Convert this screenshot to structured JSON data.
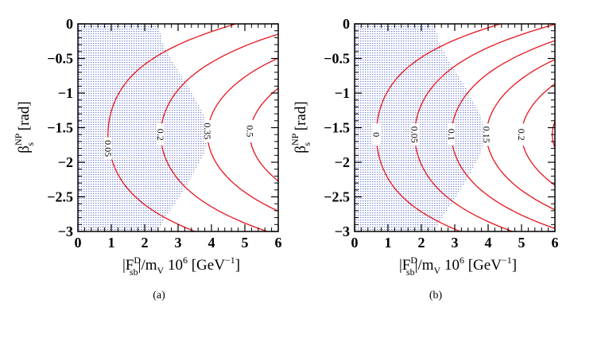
{
  "chart_data": [
    {
      "type": "contour",
      "panel": "(a)",
      "xlim": [
        0,
        6
      ],
      "ylim": [
        -3,
        0
      ],
      "xticks": [
        "0",
        "1",
        "2",
        "3",
        "4",
        "5",
        "6"
      ],
      "yticks": [
        "0",
        "−0.5",
        "−1",
        "−1.5",
        "−2",
        "−2.5",
        "−3"
      ],
      "xlabel": {
        "main": "|F",
        "sup": "D",
        "sub": "sb",
        "rest": "|/m",
        "sub2": "V",
        "after": " 10",
        "sup2": "6",
        "unit": " [GeV",
        "unitsup": "−1",
        "close": "]"
      },
      "ylabel": {
        "main": "β",
        "sup": "NP",
        "sub": "s",
        "unit": " [rad]"
      },
      "shaded_region": {
        "color": "#6f7fcf",
        "description": "allowed region",
        "boundary_x": [
          2.4,
          2.55,
          2.9,
          3.3,
          3.75,
          3.95,
          3.75,
          3.3,
          2.9,
          2.55,
          2.4
        ],
        "boundary_y": [
          0,
          -0.3,
          -0.6,
          -0.9,
          -1.3,
          -1.6,
          -1.9,
          -2.3,
          -2.6,
          -2.85,
          -3
        ]
      },
      "contours": [
        {
          "level": "0.05",
          "x_min": 0.9,
          "label_x": 0.9,
          "label_y": -1.8
        },
        {
          "level": "0.2",
          "x_min": 2.48,
          "label_x": 2.48,
          "label_y": -1.6
        },
        {
          "level": "0.35",
          "x_min": 3.88,
          "label_x": 3.88,
          "label_y": -1.55
        },
        {
          "level": "0.5",
          "x_min": 5.15,
          "label_x": 5.15,
          "label_y": -1.55
        }
      ],
      "line_color": "#e8141c"
    },
    {
      "type": "contour",
      "panel": "(b)",
      "xlim": [
        0,
        6
      ],
      "ylim": [
        -3,
        0
      ],
      "xticks": [
        "0",
        "1",
        "2",
        "3",
        "4",
        "5",
        "6"
      ],
      "yticks": [
        "0",
        "−0.5",
        "−1",
        "−1.5",
        "−2",
        "−2.5",
        "−3"
      ],
      "xlabel": {
        "main": "|F",
        "sup": "D",
        "sub": "sb",
        "rest": "|/m",
        "sub2": "V",
        "after": " 10",
        "sup2": "6",
        "unit": " [GeV",
        "unitsup": "−1",
        "close": "]"
      },
      "ylabel": {
        "main": "β",
        "sup": "NP",
        "sub": "s",
        "unit": " [rad]"
      },
      "shaded_region": {
        "color": "#6f7fcf",
        "description": "allowed region",
        "boundary_x": [
          2.4,
          2.55,
          2.9,
          3.3,
          3.75,
          3.95,
          3.75,
          3.3,
          2.9,
          2.55,
          2.4
        ],
        "boundary_y": [
          0,
          -0.3,
          -0.6,
          -0.9,
          -1.3,
          -1.6,
          -1.9,
          -2.3,
          -2.6,
          -2.85,
          -3
        ]
      },
      "contours": [
        {
          "level": "0",
          "x_min": 0.65,
          "label_x": 0.65,
          "label_y": -1.6
        },
        {
          "level": "0.05",
          "x_min": 1.8,
          "label_x": 1.8,
          "label_y": -1.6
        },
        {
          "level": "0.1",
          "x_min": 2.9,
          "label_x": 2.9,
          "label_y": -1.6
        },
        {
          "level": "0.15",
          "x_min": 3.95,
          "label_x": 3.95,
          "label_y": -1.6
        },
        {
          "level": "0.2",
          "x_min": 5.0,
          "label_x": 5.0,
          "label_y": -1.6
        },
        {
          "level": "",
          "x_min": 5.92,
          "label_x": 5.92,
          "label_y": -1.6
        }
      ],
      "line_color": "#e8141c"
    }
  ]
}
